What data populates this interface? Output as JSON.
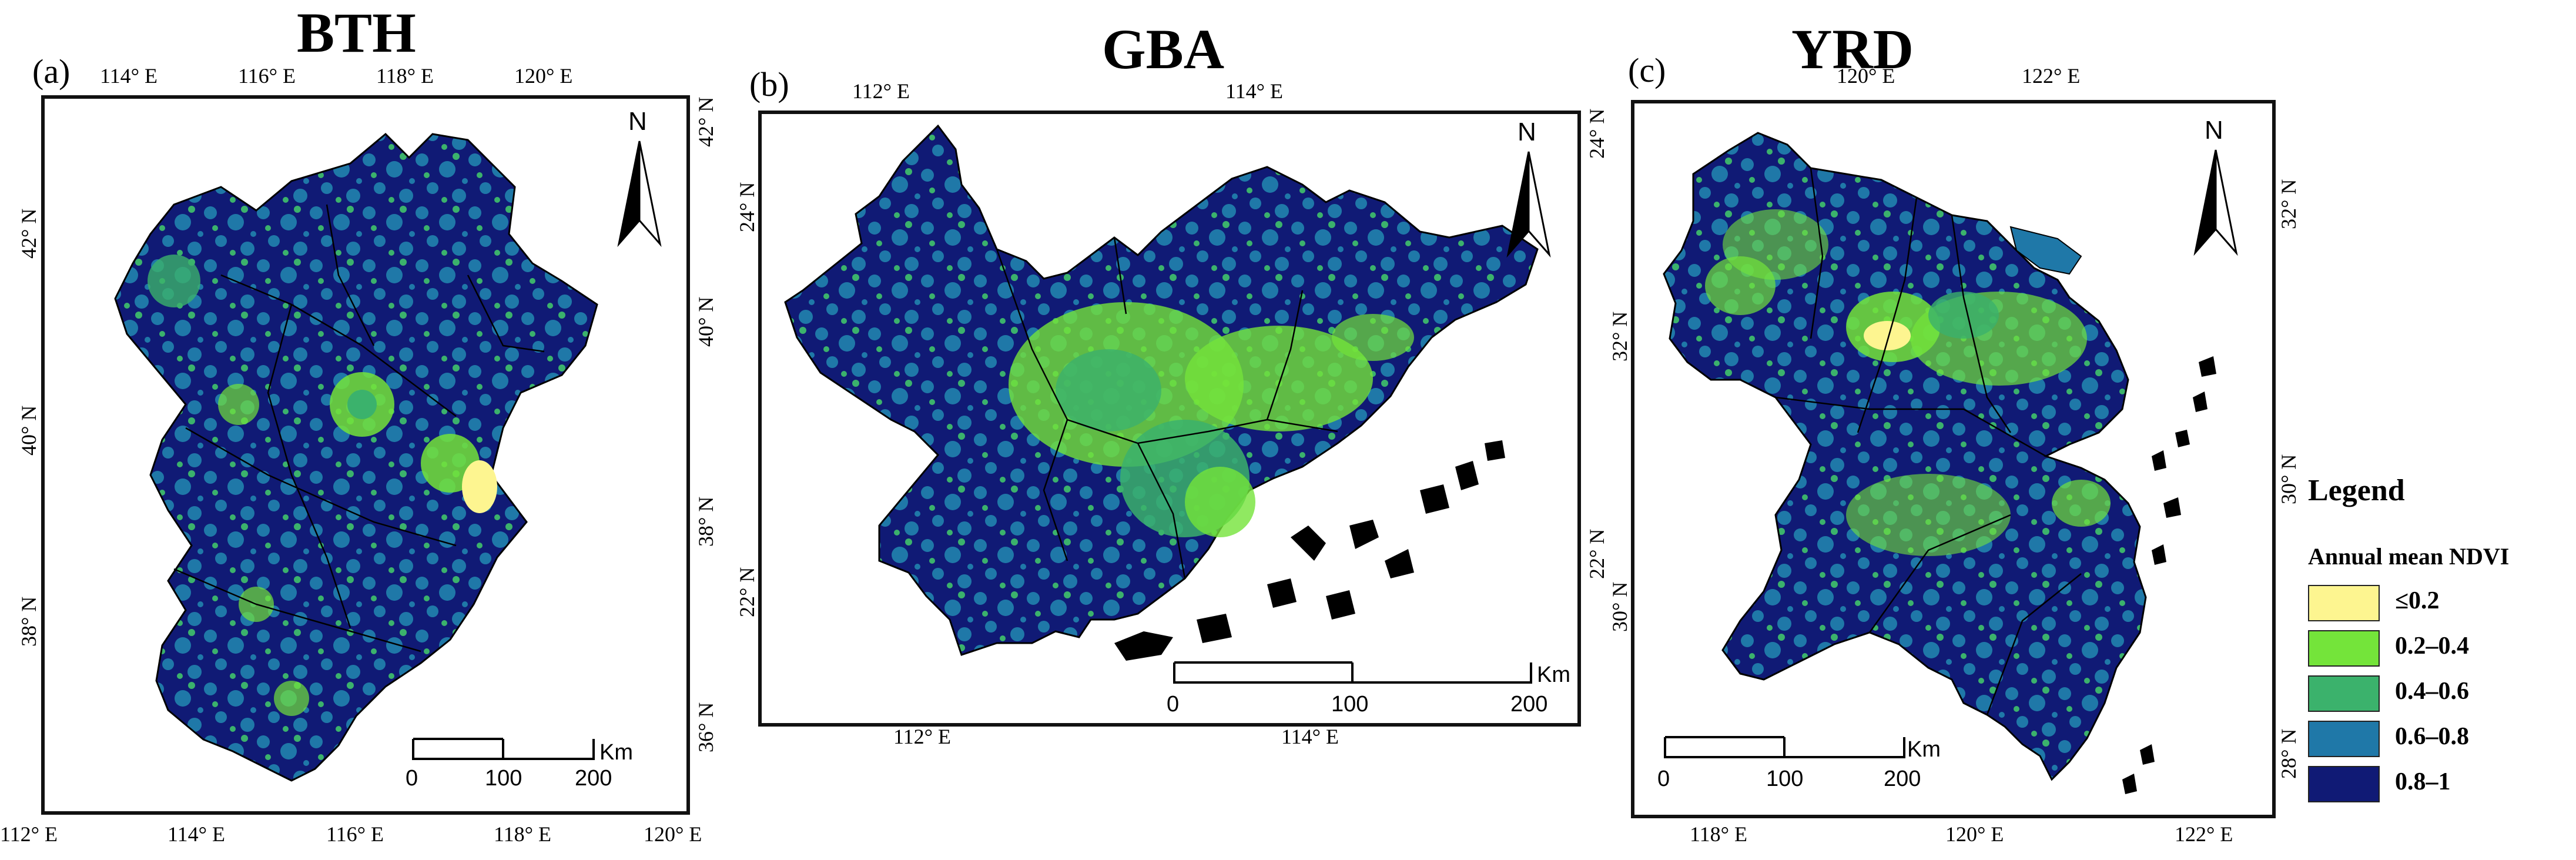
{
  "colors": {
    "c1": "#fdf590",
    "c2": "#74e43a",
    "c3": "#3bb26c",
    "c4": "#1f78a8",
    "c5": "#101a75"
  },
  "panels": {
    "bth": {
      "title": "BTH",
      "label": "(a)",
      "top_ticks": [
        "114° E",
        "116° E",
        "118° E",
        "120° E"
      ],
      "bottom_ticks": [
        "112° E",
        "114° E",
        "116° E",
        "118° E",
        "120° E"
      ],
      "left_ticks": [
        "42° N",
        "40° N",
        "38° N"
      ],
      "right_ticks": [
        "42° N",
        "40° N",
        "38° N",
        "36° N"
      ],
      "north": "N",
      "scale": {
        "v0": "0",
        "v1": "100",
        "v2": "200",
        "unit": "Km"
      }
    },
    "gba": {
      "title": "GBA",
      "label": "(b)",
      "top_ticks": [
        "112° E",
        "114° E"
      ],
      "bottom_ticks": [
        "112° E",
        "114° E"
      ],
      "left_ticks": [
        "24° N",
        "22° N"
      ],
      "right_ticks": [
        "24° N",
        "22° N"
      ],
      "north": "N",
      "scale": {
        "v0": "0",
        "v1": "100",
        "v2": "200",
        "unit": "Km"
      }
    },
    "yrd": {
      "title": "YRD",
      "label": "(c)",
      "top_ticks": [
        "120° E",
        "122° E"
      ],
      "bottom_ticks": [
        "118° E",
        "120° E",
        "122° E"
      ],
      "left_ticks": [
        "32° N",
        "30° N"
      ],
      "right_ticks": [
        "32° N",
        "30° N",
        "28° N"
      ],
      "north": "N",
      "scale": {
        "v0": "0",
        "v1": "100",
        "v2": "200",
        "unit": "Km"
      }
    }
  },
  "legend": {
    "title": "Legend",
    "subtitle": "Annual mean NDVI",
    "items": [
      {
        "label": "≤0.2",
        "color": "#fdf590"
      },
      {
        "label": "0.2–0.4",
        "color": "#74e43a"
      },
      {
        "label": "0.4–0.6",
        "color": "#3bb26c"
      },
      {
        "label": "0.6–0.8",
        "color": "#1f78a8"
      },
      {
        "label": "0.8–1",
        "color": "#101a75"
      }
    ]
  }
}
